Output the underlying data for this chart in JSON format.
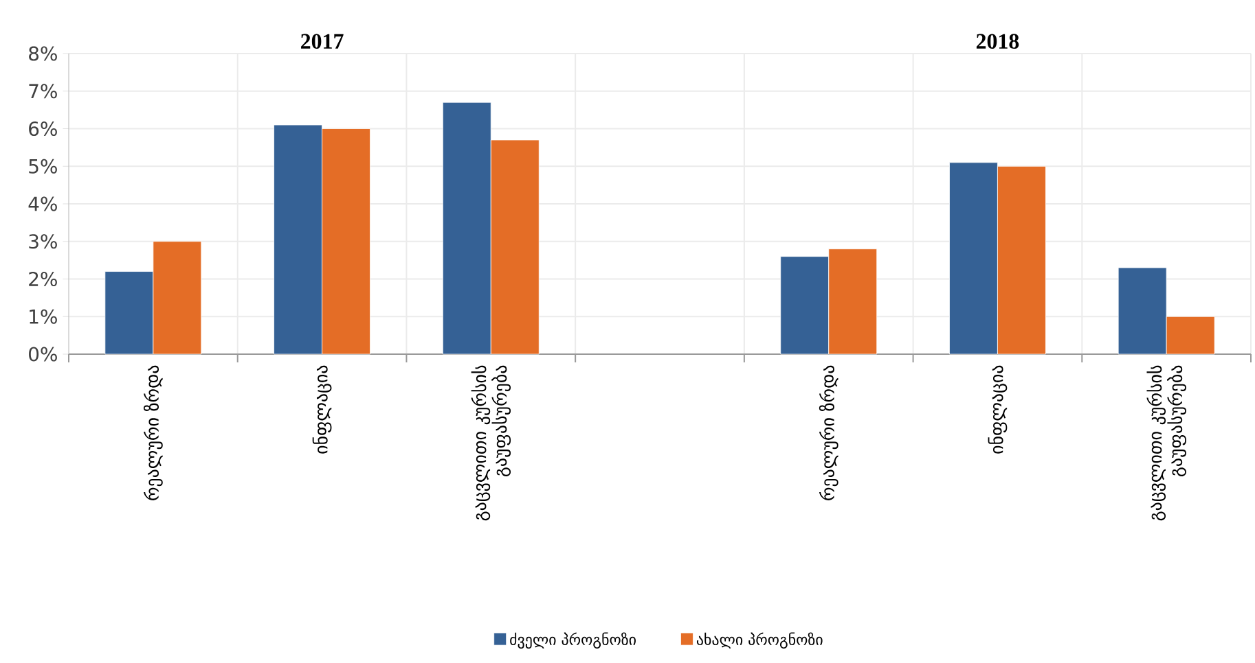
{
  "chart_data": {
    "type": "bar",
    "categories": [
      "რეალური ზრდა",
      "ინფლაცია",
      "გაცვლითი კურსის გაუფასურება",
      null,
      "რეალური ზრდა",
      "ინფლაცია",
      "გაცვლითი კურსის გაუფასურება"
    ],
    "series": [
      {
        "name": "ძველი პროგნოზი",
        "color": "#356195",
        "values": [
          2.2,
          6.1,
          6.7,
          null,
          2.6,
          5.1,
          2.3
        ]
      },
      {
        "name": "ახალი პროგნოზი",
        "color": "#e46d26",
        "values": [
          3.0,
          6.0,
          5.7,
          null,
          2.8,
          5.0,
          1.0
        ]
      }
    ],
    "annotations": [
      "2017",
      "2018"
    ],
    "ylim": [
      0,
      8
    ],
    "yticks": [
      {
        "value": 0,
        "label": "0%"
      },
      {
        "value": 1,
        "label": "1%"
      },
      {
        "value": 2,
        "label": "2%"
      },
      {
        "value": 3,
        "label": "3%"
      },
      {
        "value": 4,
        "label": "4%"
      },
      {
        "value": 5,
        "label": "5%"
      },
      {
        "value": 6,
        "label": "6%"
      },
      {
        "value": 7,
        "label": "7%"
      },
      {
        "value": 8,
        "label": "8%"
      }
    ],
    "grid": true,
    "legend": "bottom"
  }
}
